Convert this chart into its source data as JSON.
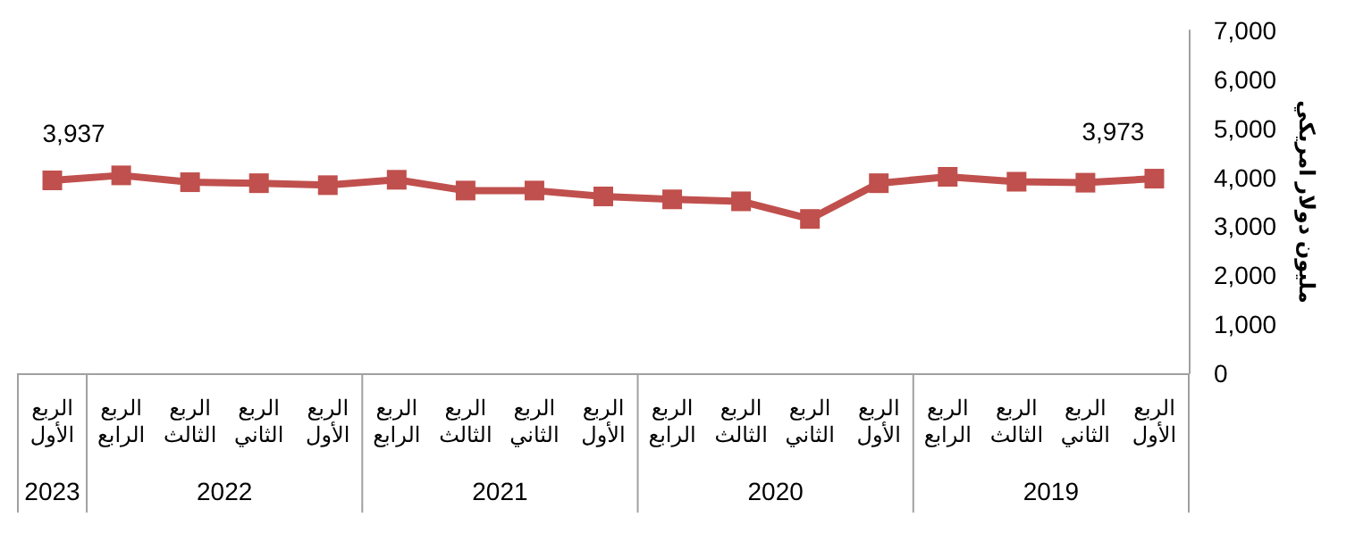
{
  "chart_data": {
    "type": "line",
    "ylabel": "مليون دولار امريكي",
    "categories": [
      "الربع الأول",
      "الربع الرابع",
      "الربع الثالث",
      "الربع الثاني",
      "الربع الأول",
      "الربع الرابع",
      "الربع الثالث",
      "الربع الثاني",
      "الربع الأول",
      "الربع الرابع",
      "الربع الثالث",
      "الربع الثاني",
      "الربع الأول",
      "الربع الرابع",
      "الربع الثالث",
      "الربع الثاني",
      "الربع الأول"
    ],
    "series": [
      {
        "color": "#c0504d",
        "values": [
          3937,
          4040,
          3900,
          3880,
          3840,
          3950,
          3730,
          3730,
          3610,
          3550,
          3510,
          3150,
          3880,
          4010,
          3910,
          3890,
          3973
        ],
        "value_labels": [
          "3,937",
          null,
          null,
          null,
          null,
          null,
          null,
          null,
          null,
          null,
          null,
          null,
          null,
          null,
          null,
          null,
          "3,973"
        ]
      }
    ],
    "ylim": [
      0,
      7000
    ],
    "yticks": [
      0,
      {
        "value": 1000,
        "label": "1,000"
      },
      {
        "value": 2000,
        "label": "2,000"
      },
      {
        "value": 3000,
        "label": "3,000"
      },
      {
        "value": 4000,
        "label": "4,000"
      },
      {
        "value": 5000,
        "label": "5,000"
      },
      {
        "value": 6000,
        "label": "6,000"
      },
      {
        "value": 7000,
        "label": "7,000"
      }
    ],
    "annotations": [
      "2023",
      "2022",
      "2021",
      "2020",
      "2019"
    ],
    "grid": false,
    "marker": "square",
    "line_style": "solid"
  }
}
